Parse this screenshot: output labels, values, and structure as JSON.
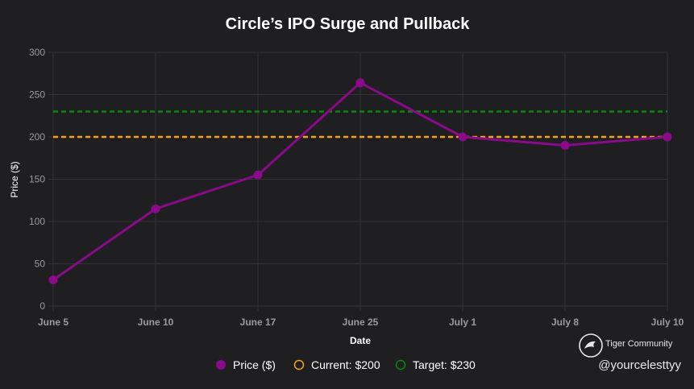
{
  "colors": {
    "background": "#1f1f22",
    "grid": "#333338",
    "axis_text": "#9a9aa0",
    "title": "#ffffff",
    "price": "#8a0a8a",
    "current": "#f5a31a",
    "target": "#0a8a0a"
  },
  "chart_data": {
    "type": "line",
    "title": "Circle’s IPO Surge and Pullback",
    "xlabel": "Date",
    "ylabel": "Price ($)",
    "ylim": [
      0,
      300
    ],
    "yticks": [
      0,
      50,
      100,
      150,
      200,
      250,
      300
    ],
    "categories": [
      "June 5",
      "June 10",
      "June 17",
      "June 25",
      "July 1",
      "July 8",
      "July 10"
    ],
    "series": [
      {
        "name": "Price ($)",
        "values": [
          31,
          115,
          155,
          264,
          200,
          190,
          200
        ],
        "style": "line-with-points"
      },
      {
        "name": "Current: $200",
        "values": [
          200,
          200,
          200,
          200,
          200,
          200,
          200
        ],
        "style": "dashed"
      },
      {
        "name": "Target: $230",
        "values": [
          230,
          230,
          230,
          230,
          230,
          230,
          230
        ],
        "style": "dashed"
      }
    ],
    "grid": true,
    "legend_position": "bottom-center"
  },
  "watermark": {
    "brand": "Tiger Community",
    "handle": "@yourcelesttyy",
    "logo_icon": "tiger-logo-icon"
  }
}
